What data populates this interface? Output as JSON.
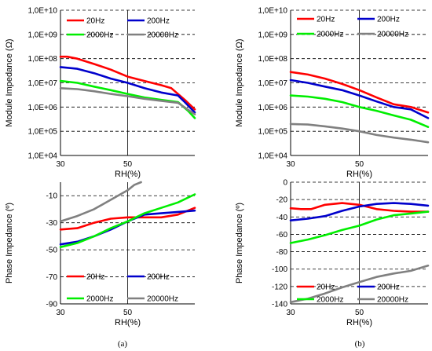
{
  "chart_data": [
    {
      "id": "a-top",
      "type": "line",
      "panel": "a",
      "xlabel": "RH(%)",
      "ylabel": "Module Impedance (Ω)",
      "yscale": "log",
      "xlim": [
        30,
        70
      ],
      "ylim": [
        10000,
        10000000000
      ],
      "xticks": [
        30,
        50
      ],
      "yticks": [
        "1,0E+04",
        "1,0E+05",
        "1,0E+06",
        "1,0E+07",
        "1,0E+08",
        "1,0E+09",
        "1,0E+10"
      ],
      "grid": "dashed, x=50 solid",
      "legend_position": "top",
      "series": [
        {
          "name": "20Hz",
          "color": "#ff0000",
          "x": [
            30,
            32,
            35,
            40,
            45,
            50,
            55,
            60,
            63,
            67,
            70
          ],
          "y": [
            120000000,
            120000000,
            100000000,
            60000000,
            35000000,
            18000000,
            12000000,
            8000000,
            6000000,
            2000000,
            800000
          ]
        },
        {
          "name": "200Hz",
          "color": "#0000cc",
          "x": [
            30,
            35,
            40,
            45,
            50,
            55,
            60,
            65,
            67,
            70
          ],
          "y": [
            45000000,
            38000000,
            25000000,
            15000000,
            10000000,
            6000000,
            4000000,
            3000000,
            1600000,
            600000
          ]
        },
        {
          "name": "2000Hz",
          "color": "#00ee00",
          "x": [
            30,
            35,
            40,
            45,
            50,
            55,
            60,
            65,
            68,
            70
          ],
          "y": [
            12000000,
            10000000,
            7000000,
            5000000,
            3500000,
            2500000,
            2000000,
            1600000,
            700000,
            350000
          ]
        },
        {
          "name": "20000Hz",
          "color": "#808080",
          "x": [
            30,
            35,
            40,
            45,
            50,
            55,
            60,
            65,
            70
          ],
          "y": [
            6000000,
            5500000,
            4500000,
            3500000,
            2800000,
            2200000,
            1800000,
            1500000,
            500000
          ]
        }
      ]
    },
    {
      "id": "b-top",
      "type": "line",
      "panel": "b",
      "xlabel": "RH(%)",
      "ylabel": "Module Impedance (Ω)",
      "yscale": "log",
      "xlim": [
        30,
        70
      ],
      "ylim": [
        10000,
        10000000000
      ],
      "xticks": [
        30,
        50
      ],
      "yticks": [
        "1,0E+04",
        "1,0E+05",
        "1,0E+06",
        "1,0E+07",
        "1,0E+08",
        "1,0E+09",
        "1,0E+10"
      ],
      "grid": "dashed, x=50 solid",
      "legend_position": "top",
      "series": [
        {
          "name": "20Hz",
          "color": "#ff0000",
          "x": [
            30,
            35,
            40,
            45,
            50,
            55,
            60,
            65,
            70
          ],
          "y": [
            28000000,
            22000000,
            15000000,
            9000000,
            5000000,
            2500000,
            1300000,
            1000000,
            600000
          ]
        },
        {
          "name": "200Hz",
          "color": "#0000cc",
          "x": [
            30,
            35,
            40,
            45,
            50,
            55,
            60,
            65,
            70
          ],
          "y": [
            13000000,
            10000000,
            7000000,
            5000000,
            3000000,
            1700000,
            1000000,
            800000,
            350000
          ]
        },
        {
          "name": "2000Hz",
          "color": "#00ee00",
          "x": [
            30,
            35,
            40,
            45,
            50,
            55,
            60,
            65,
            70
          ],
          "y": [
            3000000,
            2700000,
            2200000,
            1600000,
            1000000,
            700000,
            450000,
            300000,
            150000
          ]
        },
        {
          "name": "20000Hz",
          "color": "#808080",
          "x": [
            30,
            35,
            40,
            45,
            50,
            55,
            60,
            65,
            70
          ],
          "y": [
            200000,
            190000,
            160000,
            130000,
            100000,
            70000,
            55000,
            45000,
            35000
          ]
        }
      ]
    },
    {
      "id": "a-bottom",
      "type": "line",
      "panel": "a",
      "xlabel": "RH(%)",
      "ylabel": "Phase Impedance (º)",
      "yscale": "linear",
      "xlim": [
        30,
        70
      ],
      "ylim": [
        -90,
        0
      ],
      "xticks": [
        30,
        50
      ],
      "yticks": [
        "-90",
        "-70",
        "-50",
        "-30",
        "-10"
      ],
      "ytick_values": [
        -90,
        -70,
        -50,
        -30,
        -10
      ],
      "grid": "dashed, x=50 solid",
      "legend_position": "bottom",
      "series": [
        {
          "name": "20Hz",
          "color": "#ff0000",
          "x": [
            30,
            35,
            40,
            45,
            50,
            55,
            60,
            65,
            70
          ],
          "y": [
            -35,
            -34,
            -30,
            -27,
            -26,
            -26,
            -26,
            -24,
            -19
          ]
        },
        {
          "name": "200Hz",
          "color": "#0000cc",
          "x": [
            30,
            35,
            40,
            45,
            50,
            55,
            60,
            65,
            70
          ],
          "y": [
            -46,
            -44,
            -40,
            -35,
            -29,
            -24,
            -23,
            -22,
            -21
          ]
        },
        {
          "name": "2000Hz",
          "color": "#00ee00",
          "x": [
            30,
            35,
            40,
            45,
            50,
            55,
            60,
            65,
            70
          ],
          "y": [
            -48,
            -45,
            -40,
            -34,
            -29,
            -23,
            -19,
            -15,
            -9
          ]
        },
        {
          "name": "20000Hz",
          "color": "#808080",
          "x": [
            30,
            35,
            40,
            45,
            50,
            52,
            54
          ],
          "y": [
            -29,
            -25,
            -20,
            -13,
            -6,
            -2,
            0
          ]
        }
      ]
    },
    {
      "id": "b-bottom",
      "type": "line",
      "panel": "b",
      "xlabel": "RH(%)",
      "ylabel": "Phase Impedance (º)",
      "yscale": "linear",
      "xlim": [
        30,
        70
      ],
      "ylim": [
        -140,
        0
      ],
      "xticks": [
        30,
        50
      ],
      "yticks": [
        "-140",
        "-120",
        "-100",
        "-80",
        "-60",
        "-40",
        "-20",
        "0"
      ],
      "ytick_values": [
        -140,
        -120,
        -100,
        -80,
        -60,
        -40,
        -20,
        0
      ],
      "grid": "dashed, x=50 solid",
      "legend_position": "bottom",
      "series": [
        {
          "name": "20Hz",
          "color": "#ff0000",
          "x": [
            30,
            33,
            36,
            40,
            45,
            50,
            55,
            60,
            65,
            70
          ],
          "y": [
            -30,
            -31,
            -31,
            -26,
            -24,
            -26,
            -31,
            -33,
            -34,
            -34
          ]
        },
        {
          "name": "200Hz",
          "color": "#0000cc",
          "x": [
            30,
            35,
            40,
            45,
            50,
            55,
            60,
            65,
            70
          ],
          "y": [
            -44,
            -42,
            -39,
            -33,
            -28,
            -25,
            -24,
            -25,
            -27
          ]
        },
        {
          "name": "2000Hz",
          "color": "#00ee00",
          "x": [
            30,
            35,
            40,
            45,
            50,
            55,
            60,
            65,
            70
          ],
          "y": [
            -70,
            -66,
            -61,
            -55,
            -50,
            -43,
            -38,
            -36,
            -34
          ]
        },
        {
          "name": "20000Hz",
          "color": "#808080",
          "x": [
            30,
            35,
            40,
            45,
            50,
            55,
            60,
            65,
            70
          ],
          "y": [
            -138,
            -134,
            -128,
            -121,
            -115,
            -109,
            -105,
            -102,
            -96
          ]
        }
      ]
    }
  ],
  "panel_labels": {
    "a": "(a)",
    "b": "(b)"
  }
}
